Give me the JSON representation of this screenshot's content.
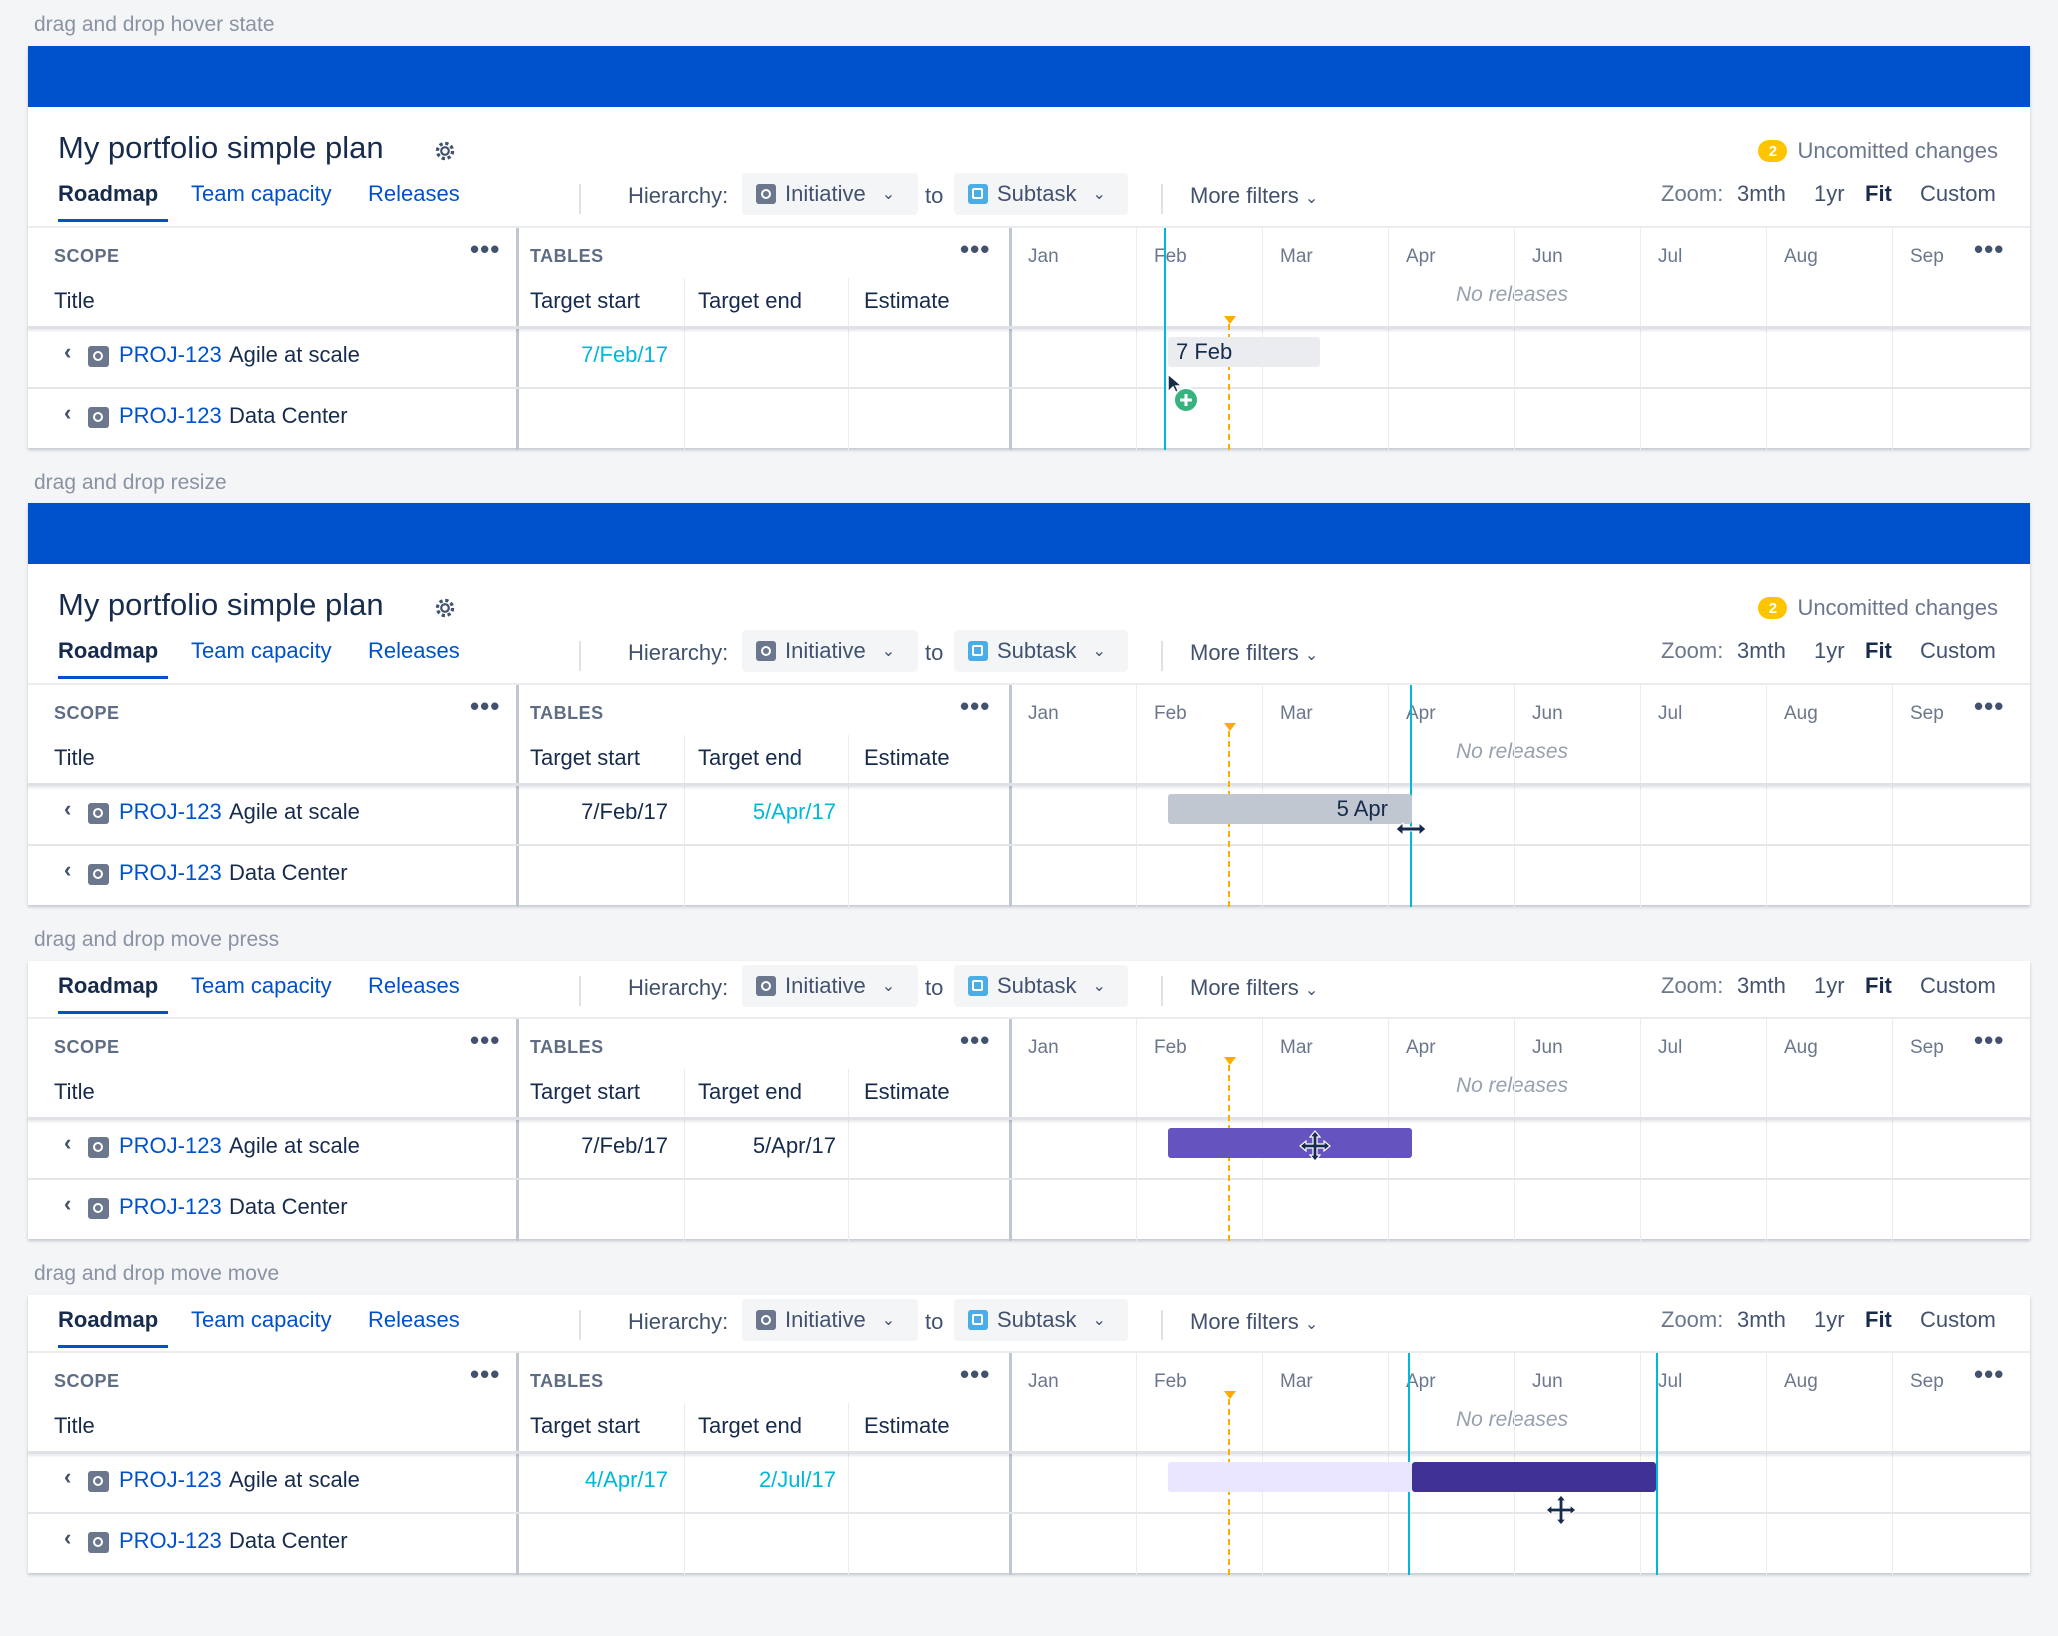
{
  "plan_title": "My portfolio simple plan",
  "uncommitted": {
    "count": "2",
    "label": "Uncomitted changes"
  },
  "tabs": {
    "roadmap": "Roadmap",
    "team_capacity": "Team capacity",
    "releases": "Releases"
  },
  "hierarchy": {
    "label": "Hierarchy:",
    "from": "Initiative",
    "to_label": "to",
    "to": "Subtask"
  },
  "more_filters": "More filters",
  "zoom": {
    "label": "Zoom:",
    "options": [
      "3mth",
      "1yr",
      "Fit",
      "Custom"
    ],
    "active": "Fit"
  },
  "headers": {
    "scope": "SCOPE",
    "tables": "TABLES",
    "title": "Title",
    "target_start": "Target start",
    "target_end": "Target end",
    "estimate": "Estimate"
  },
  "months": [
    "Jan",
    "Feb",
    "Mar",
    "Apr",
    "Jun",
    "Jul",
    "Aug",
    "Sep"
  ],
  "no_releases": "No releases",
  "rows": [
    {
      "key": "PROJ-123",
      "name": "Agile at scale"
    },
    {
      "key": "PROJ-123",
      "name": "Data Center"
    }
  ],
  "states": [
    {
      "caption": "drag and drop hover state",
      "start": "7/Feb/17",
      "end": "",
      "bar_label": "7 Feb",
      "bar_start": "7 Feb",
      "bar_end": ""
    },
    {
      "caption": "drag and drop resize",
      "start": "7/Feb/17",
      "end": "5/Apr/17",
      "bar_label": "5 Apr",
      "bar_start": "7 Feb",
      "bar_end": "5 Apr"
    },
    {
      "caption": "drag and drop move press",
      "start": "7/Feb/17",
      "end": "5/Apr/17",
      "bar_label": "",
      "bar_start": "7 Feb",
      "bar_end": "5 Apr"
    },
    {
      "caption": "drag and drop move move",
      "start": "4/Apr/17",
      "end": "2/Jul/17",
      "bar_label": "",
      "bar_start": "4 Apr",
      "bar_end": "2 Jul",
      "ghost_start": "7 Feb",
      "ghost_end": "5 Apr"
    }
  ],
  "colors": {
    "header_blue": "#0052cc",
    "link_blue": "#0052cc",
    "highlight_cyan": "#00b8d9",
    "today_orange": "#ffab00",
    "bar_grey": "#c1c7d0",
    "bar_purple": "#6554c0",
    "bar_dark_purple": "#403294",
    "bar_ghost": "#eae6ff",
    "badge_yellow": "#ffc400",
    "add_green": "#36b37e"
  },
  "icons": {
    "settings": "gear-icon",
    "initiative": "initiative-icon",
    "subtask": "subtask-icon",
    "collapse": "chevron-left-icon",
    "dropdown": "chevron-down-icon",
    "more": "more-icon",
    "add": "plus-circle-icon",
    "cursor": "pointer-cursor-icon",
    "resize": "resize-cursor-icon",
    "move": "move-cursor-icon"
  }
}
